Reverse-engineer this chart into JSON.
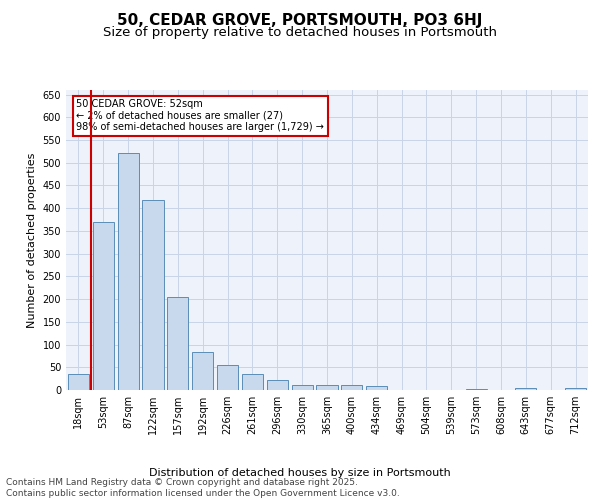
{
  "title1": "50, CEDAR GROVE, PORTSMOUTH, PO3 6HJ",
  "title2": "Size of property relative to detached houses in Portsmouth",
  "xlabel": "Distribution of detached houses by size in Portsmouth",
  "ylabel": "Number of detached properties",
  "categories": [
    "18sqm",
    "53sqm",
    "87sqm",
    "122sqm",
    "157sqm",
    "192sqm",
    "226sqm",
    "261sqm",
    "296sqm",
    "330sqm",
    "365sqm",
    "400sqm",
    "434sqm",
    "469sqm",
    "504sqm",
    "539sqm",
    "573sqm",
    "608sqm",
    "643sqm",
    "677sqm",
    "712sqm"
  ],
  "values": [
    35,
    370,
    522,
    418,
    205,
    84,
    55,
    36,
    22,
    12,
    10,
    10,
    8,
    0,
    0,
    0,
    3,
    0,
    5,
    0,
    5
  ],
  "bar_color": "#c9d9ed",
  "bar_edge_color": "#5b8db8",
  "vline_x": 0.5,
  "vline_color": "#cc0000",
  "annotation_text": "50 CEDAR GROVE: 52sqm\n← 2% of detached houses are smaller (27)\n98% of semi-detached houses are larger (1,729) →",
  "annotation_box_color": "#cc0000",
  "ylim": [
    0,
    660
  ],
  "yticks": [
    0,
    50,
    100,
    150,
    200,
    250,
    300,
    350,
    400,
    450,
    500,
    550,
    600,
    650
  ],
  "footer": "Contains HM Land Registry data © Crown copyright and database right 2025.\nContains public sector information licensed under the Open Government Licence v3.0.",
  "bg_color": "#eef2fa",
  "grid_color": "#c8d4e8",
  "title_fontsize": 11,
  "subtitle_fontsize": 9.5,
  "axis_label_fontsize": 8,
  "tick_fontsize": 7,
  "footer_fontsize": 6.5
}
